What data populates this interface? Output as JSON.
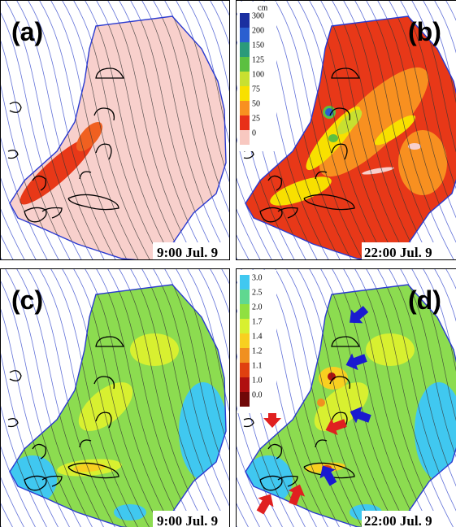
{
  "panels": [
    {
      "label": "(a)",
      "time": "9:00 Jul. 9"
    },
    {
      "label": "(b)",
      "time": "22:00 Jul. 9",
      "legend": {
        "unit": "cm",
        "labels": [
          "300",
          "200",
          "150",
          "125",
          "100",
          "75",
          "50",
          "25",
          "0"
        ]
      }
    },
    {
      "label": "(c)",
      "time": "9:00 Jul. 9"
    },
    {
      "label": "(d)",
      "time": "22:00 Jul. 9",
      "legend": {
        "labels": [
          "3.0",
          "2.5",
          "2.0",
          "1.7",
          "1.4",
          "1.2",
          "1.1",
          "1.0",
          "0.0"
        ]
      }
    }
  ]
}
